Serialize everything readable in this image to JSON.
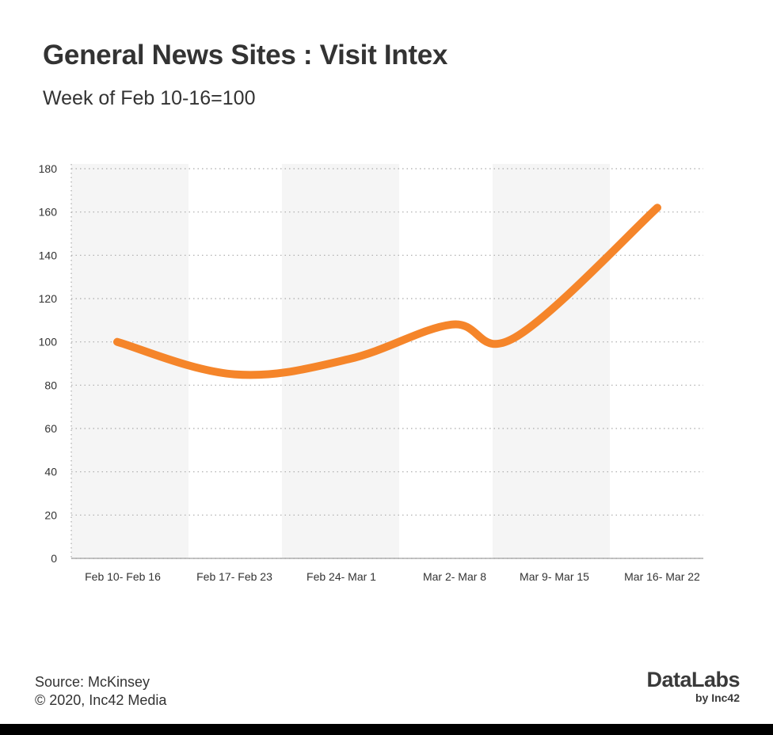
{
  "header": {
    "title": "General News Sites : Visit Intex",
    "subtitle": "Week of Feb 10-16=100"
  },
  "footer": {
    "source": "Source: McKinsey",
    "copyright": "© 2020, Inc42 Media"
  },
  "logo": {
    "main": "DataLabs",
    "sub": "by Inc42"
  },
  "colors": {
    "line": "#F5852A",
    "band": "#F5F5F5",
    "grid": "#AAAAAA",
    "text": "#333333"
  },
  "chart_data": {
    "type": "line",
    "categories": [
      "Feb 10- Feb 16",
      "Feb 17- Feb 23",
      "Feb 24- Mar 1",
      "Mar 2- Mar 8",
      "Mar 9- Mar 15",
      "Mar 16- Mar 22"
    ],
    "series": [
      {
        "values": [
          100,
          85,
          92,
          108,
          102,
          162
        ]
      }
    ],
    "yticks": [
      0,
      20,
      40,
      60,
      80,
      100,
      120,
      140,
      160,
      180
    ],
    "ylim": [
      0,
      180
    ],
    "xlabel": "",
    "ylabel": "",
    "grid": "dotted horizontal",
    "smooth": true,
    "legend": "none"
  }
}
